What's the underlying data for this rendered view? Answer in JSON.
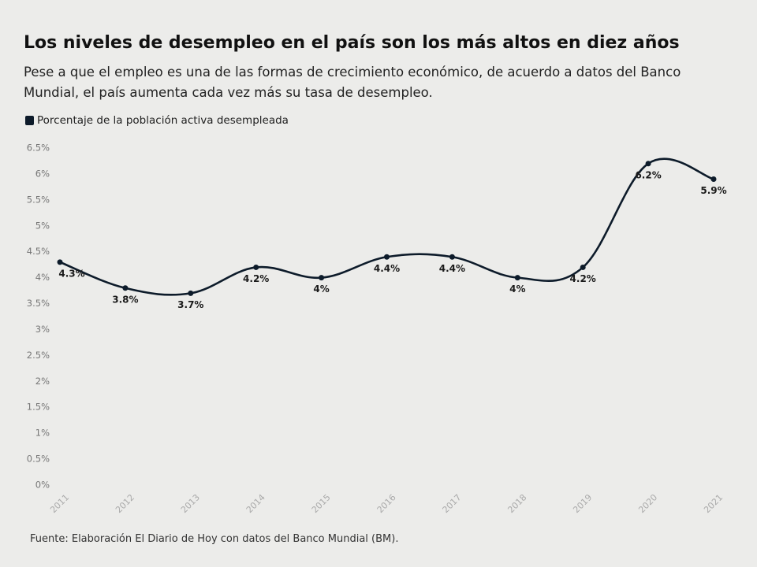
{
  "chart_data": {
    "type": "line",
    "title": "Los niveles de desempleo en el país son los más altos en diez años",
    "subtitle": "Pese a que el empleo es una de las formas de crecimiento económico, de acuerdo a datos del Banco Mundial, el país aumenta cada vez más su tasa de desempleo.",
    "source": "Fuente: Elaboración El Diario de Hoy con datos del Banco Mundial (BM).",
    "categories": [
      "2011",
      "2012",
      "2013",
      "2014",
      "2015",
      "2016",
      "2017",
      "2018",
      "2019",
      "2020",
      "2021"
    ],
    "series": [
      {
        "name": "Porcentaje de la población activa desempleada",
        "color": "#0d1b2a",
        "values": [
          4.3,
          3.8,
          3.7,
          4.2,
          4,
          4.4,
          4.4,
          4,
          4.2,
          6.2,
          5.9
        ],
        "value_labels": [
          "4.3%",
          "3.8%",
          "3.7%",
          "4.2%",
          "4%",
          "4.4%",
          "4.4%",
          "4%",
          "4.2%",
          "6.2%",
          "5.9%"
        ]
      }
    ],
    "ylim": [
      0,
      6.5
    ],
    "yticks": [
      {
        "value": 0,
        "label": "0%"
      },
      {
        "value": 0.5,
        "label": "0.5%"
      },
      {
        "value": 1,
        "label": "1%"
      },
      {
        "value": 1.5,
        "label": "1.5%"
      },
      {
        "value": 2,
        "label": "2%"
      },
      {
        "value": 2.5,
        "label": "2.5%"
      },
      {
        "value": 3,
        "label": "3%"
      },
      {
        "value": 3.5,
        "label": "3.5%"
      },
      {
        "value": 4,
        "label": "4%"
      },
      {
        "value": 4.5,
        "label": "4.5%"
      },
      {
        "value": 5,
        "label": "5%"
      },
      {
        "value": 5.5,
        "label": "5.5%"
      },
      {
        "value": 6,
        "label": "6%"
      },
      {
        "value": 6.5,
        "label": "6.5%"
      }
    ]
  }
}
